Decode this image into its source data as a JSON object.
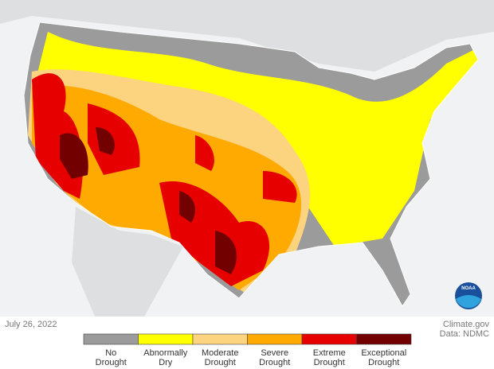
{
  "date": "July 26, 2022",
  "credit": {
    "site": "Climate.gov",
    "source": "Data: NDMC"
  },
  "legend": {
    "items": [
      {
        "label": [
          "No",
          "Drought"
        ],
        "color": "#9b9b9b"
      },
      {
        "label": [
          "Abnormally",
          "Dry"
        ],
        "color": "#ffff00"
      },
      {
        "label": [
          "Moderate",
          "Drought"
        ],
        "color": "#fcd37f"
      },
      {
        "label": [
          "Severe",
          "Drought"
        ],
        "color": "#ffaa00"
      },
      {
        "label": [
          "Extreme",
          "Drought"
        ],
        "color": "#e60000"
      },
      {
        "label": [
          "Exceptional",
          "Drought"
        ],
        "color": "#730000"
      }
    ]
  }
}
